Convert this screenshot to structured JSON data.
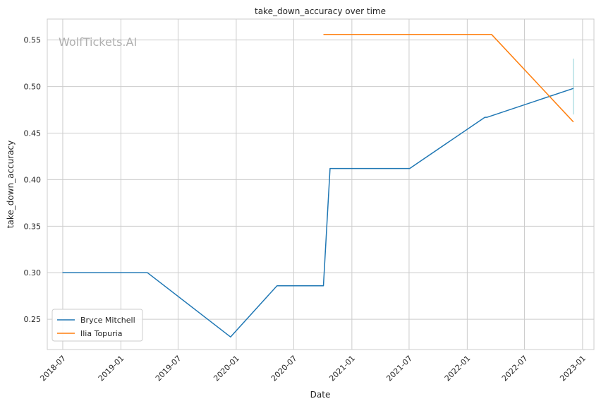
{
  "watermark": "WolfTickets.AI",
  "chart_data": {
    "type": "line",
    "title": "take_down_accuracy over time",
    "xlabel": "Date",
    "ylabel": "take_down_accuracy",
    "x_axis_type": "date",
    "xlim": [
      "2018-05-13",
      "2023-02-06"
    ],
    "ylim": [
      0.2175,
      0.5725
    ],
    "x_ticks": [
      "2018-07-01",
      "2019-01-01",
      "2019-07-01",
      "2020-01-01",
      "2020-07-01",
      "2021-01-01",
      "2021-07-01",
      "2022-01-01",
      "2022-07-01",
      "2023-01-01"
    ],
    "x_tick_labels": [
      "2018-07",
      "2019-01",
      "2019-07",
      "2020-01",
      "2020-07",
      "2021-01",
      "2021-07",
      "2022-01",
      "2022-07",
      "2023-01"
    ],
    "y_ticks": [
      0.25,
      0.3,
      0.35,
      0.4,
      0.45,
      0.5,
      0.55
    ],
    "y_tick_labels": [
      "0.25",
      "0.30",
      "0.35",
      "0.40",
      "0.45",
      "0.50",
      "0.55"
    ],
    "grid": true,
    "legend_position": "lower-left",
    "series": [
      {
        "name": "Bryce Mitchell",
        "color": "#1f77b4",
        "points": [
          [
            "2018-06-30",
            0.3
          ],
          [
            "2019-03-26",
            0.3
          ],
          [
            "2019-12-14",
            0.231
          ],
          [
            "2020-05-09",
            0.286
          ],
          [
            "2020-10-03",
            0.286
          ],
          [
            "2020-10-24",
            0.412
          ],
          [
            "2021-07-03",
            0.412
          ],
          [
            "2022-02-26",
            0.467
          ],
          [
            "2022-03-05",
            0.467
          ],
          [
            "2022-12-03",
            0.498
          ]
        ]
      },
      {
        "name": "Ilia Topuria",
        "color": "#ff7f0e",
        "points": [
          [
            "2020-10-03",
            0.556
          ],
          [
            "2022-03-19",
            0.556
          ],
          [
            "2022-12-03",
            0.462
          ]
        ]
      }
    ],
    "annotations": [
      {
        "type": "vertical-range",
        "color": "#8ed1d6",
        "x": "2022-12-03",
        "y_range": [
          0.47,
          0.53
        ]
      }
    ]
  }
}
